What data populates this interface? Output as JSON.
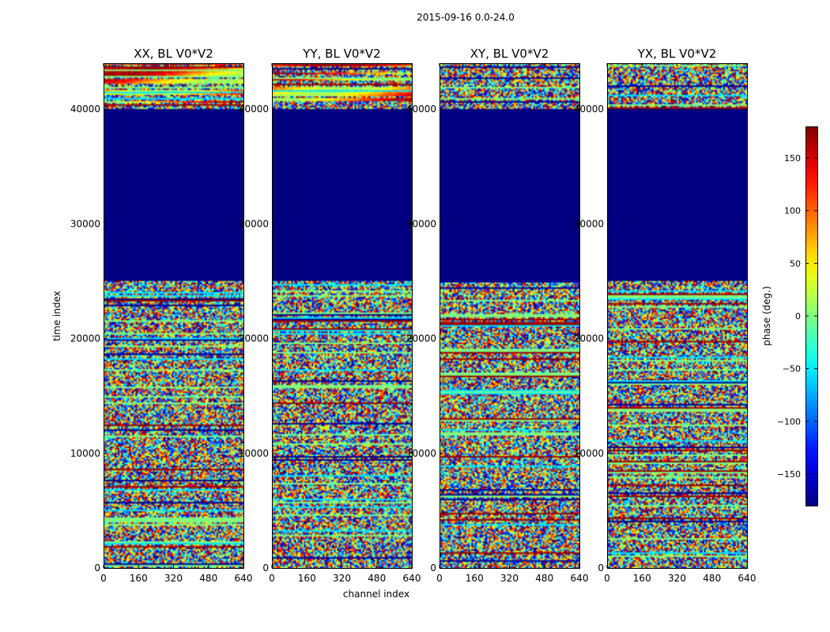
{
  "figure": {
    "suptitle": "2015-09-16 0.0-24.0",
    "xlabel": "channel index",
    "ylabel": "time index"
  },
  "chart_data": {
    "type": "heatmap",
    "title": "2015-09-16 0.0-24.0",
    "xlabel": "channel index",
    "ylabel": "time index",
    "xlim": [
      0,
      640
    ],
    "ylim": [
      0,
      44000
    ],
    "xticks": [
      0,
      160,
      320,
      480,
      640
    ],
    "yticks": [
      0,
      10000,
      20000,
      30000,
      40000
    ],
    "panels": [
      {
        "title": "XX, BL V0*V2",
        "phase_wrap_rows": true
      },
      {
        "title": "YY, BL V0*V2",
        "phase_wrap_rows": true
      },
      {
        "title": "XY, BL V0*V2",
        "phase_wrap_rows": false
      },
      {
        "title": "YX, BL V0*V2",
        "phase_wrap_rows": false
      }
    ],
    "flagged_range": [
      25000,
      40000
    ],
    "colorbar": {
      "label": "phase (deg.)",
      "range": [
        -180,
        180
      ],
      "ticks": [
        150,
        100,
        50,
        0,
        -50,
        -100,
        -150
      ],
      "colormap": "jet"
    }
  }
}
